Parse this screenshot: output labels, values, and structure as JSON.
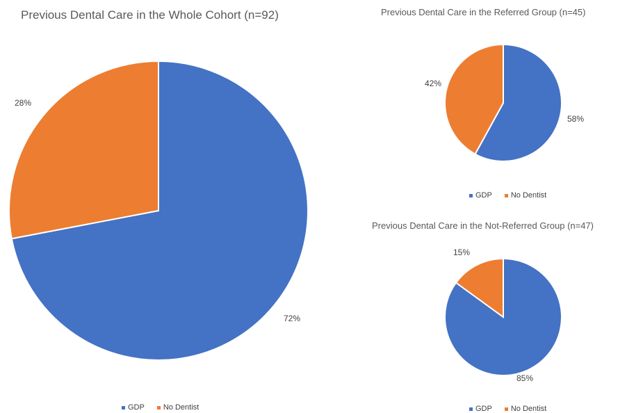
{
  "colors": {
    "gdp": "#4472C4",
    "no_dentist": "#ED7D31"
  },
  "chart_data": [
    {
      "type": "pie",
      "title": "Previous Dental Care in the Whole Cohort (n=92)",
      "categories": [
        "GDP",
        "No Dentist"
      ],
      "values": [
        72,
        28
      ],
      "labels": [
        "72%",
        "28%"
      ],
      "legend": [
        "GDP",
        "No Dentist"
      ],
      "legend_position": "bottom"
    },
    {
      "type": "pie",
      "title": "Previous Dental Care in the Referred Group (n=45)",
      "categories": [
        "GDP",
        "No Dentist"
      ],
      "values": [
        58,
        42
      ],
      "labels": [
        "58%",
        "42%"
      ],
      "legend": [
        "GDP",
        "No Dentist"
      ],
      "legend_position": "bottom"
    },
    {
      "type": "pie",
      "title": "Previous Dental Care in the Not-Referred Group (n=47)",
      "categories": [
        "GDP",
        "No Dentist"
      ],
      "values": [
        85,
        15
      ],
      "labels": [
        "85%",
        "15%"
      ],
      "legend": [
        "GDP",
        "No Dentist"
      ],
      "legend_position": "bottom"
    }
  ]
}
